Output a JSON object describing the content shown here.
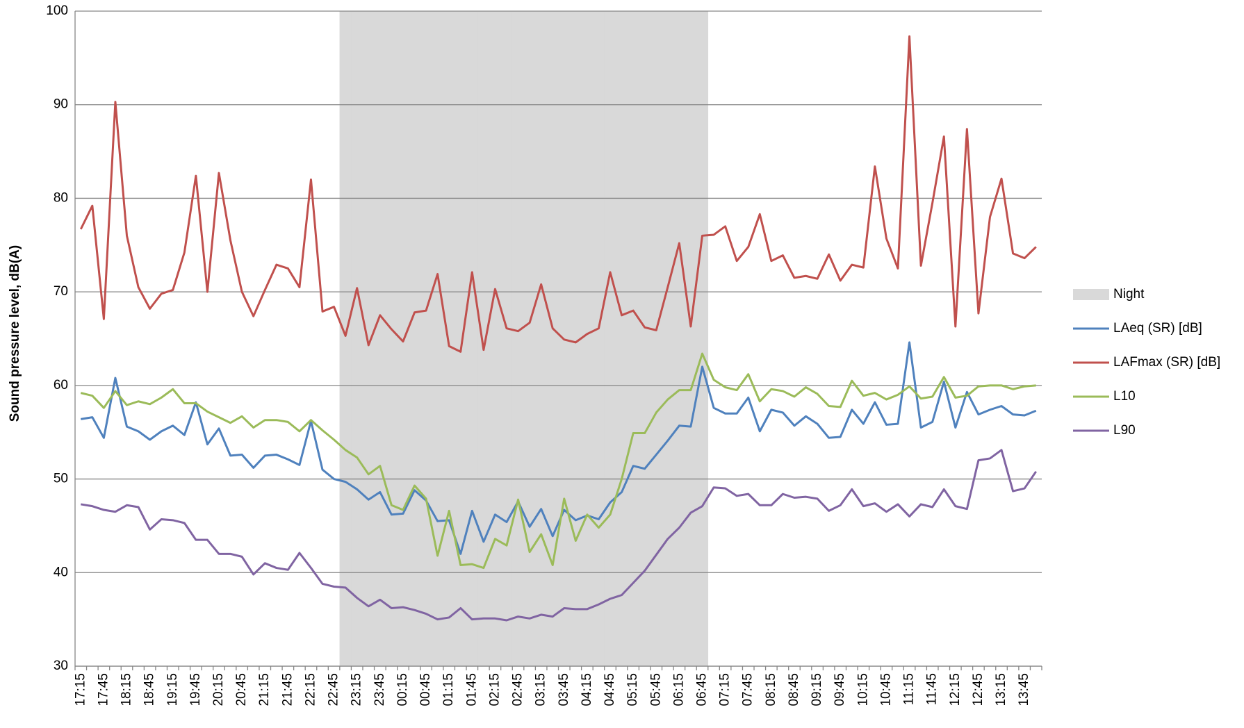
{
  "chart_data": {
    "type": "line",
    "y_label": "Sound pressure level, dB(A)",
    "ylim": [
      30,
      100
    ],
    "yticks": [
      30,
      40,
      50,
      60,
      70,
      80,
      90,
      100
    ],
    "grid": true,
    "legend": "right",
    "categories": [
      "17:15",
      null,
      "17:45",
      null,
      "18:15",
      null,
      "18:45",
      null,
      "19:15",
      null,
      "19:45",
      null,
      "20:15",
      null,
      "20:45",
      null,
      "21:15",
      null,
      "21:45",
      null,
      "22:15",
      null,
      "22:45",
      null,
      "23:15",
      null,
      "23:45",
      null,
      "00:15",
      null,
      "00:45",
      null,
      "01:15",
      null,
      "01:45",
      null,
      "02:15",
      null,
      "02:45",
      null,
      "03:15",
      null,
      "03:45",
      null,
      "04:15",
      null,
      "04:45",
      null,
      "05:15",
      null,
      "05:45",
      null,
      "06:15",
      null,
      "06:45",
      null,
      "07:15",
      null,
      "07:45",
      null,
      "08:15",
      null,
      "08:45",
      null,
      "09:15",
      null,
      "09:45",
      null,
      "10:15",
      null,
      "10:45",
      null,
      "11:15",
      null,
      "11:45",
      null,
      "12:15",
      null,
      "12:45",
      null,
      "13:15",
      null,
      "13:45",
      null
    ],
    "series": [
      {
        "name": "Night",
        "type": "bar",
        "color": "#d9d9d9",
        "values": [
          null,
          null,
          null,
          null,
          null,
          null,
          null,
          null,
          null,
          null,
          null,
          null,
          null,
          null,
          null,
          null,
          null,
          null,
          null,
          null,
          null,
          null,
          null,
          100,
          100,
          100,
          100,
          100,
          100,
          100,
          100,
          100,
          100,
          100,
          100,
          100,
          100,
          100,
          100,
          100,
          100,
          100,
          100,
          100,
          100,
          100,
          100,
          100,
          100,
          100,
          100,
          100,
          100,
          100,
          100,
          null,
          null,
          null,
          null,
          null,
          null,
          null,
          null,
          null,
          null,
          null,
          null,
          null,
          null,
          null,
          null,
          null,
          null,
          null,
          null,
          null,
          null,
          null,
          null,
          null,
          null,
          null,
          null,
          null
        ]
      },
      {
        "name": "LAeq (SR) [dB]",
        "type": "line",
        "color": "#4f81bd",
        "values": [
          56.4,
          56.6,
          54.4,
          60.8,
          55.6,
          55.1,
          54.2,
          55.1,
          55.7,
          54.7,
          58.2,
          53.7,
          55.4,
          52.5,
          52.6,
          51.2,
          52.5,
          52.6,
          52.1,
          51.5,
          56.2,
          51,
          50,
          49.7,
          48.9,
          47.8,
          48.6,
          46.2,
          46.3,
          48.8,
          47.7,
          45.5,
          45.6,
          42,
          46.6,
          43.3,
          46.2,
          45.4,
          47.6,
          44.9,
          46.8,
          43.9,
          46.7,
          45.6,
          46.1,
          45.7,
          47.5,
          48.6,
          51.4,
          51.1,
          52.6,
          54.1,
          55.7,
          55.6,
          62,
          57.6,
          57,
          57,
          58.7,
          55.1,
          57.4,
          57.1,
          55.7,
          56.7,
          55.9,
          54.4,
          54.5,
          57.4,
          55.9,
          58.2,
          55.8,
          55.9,
          64.6,
          55.5,
          56.1,
          60.4,
          55.5,
          59.3,
          56.9,
          57.4,
          57.8,
          56.9,
          56.8,
          57.3
        ]
      },
      {
        "name": "LAFmax (SR) [dB]",
        "type": "line",
        "color": "#c0504d",
        "values": [
          76.7,
          79.2,
          67.1,
          90.3,
          76,
          70.5,
          68.2,
          69.8,
          70.2,
          74.2,
          82.4,
          70,
          82.7,
          75.5,
          70,
          67.4,
          70.2,
          72.9,
          72.5,
          70.5,
          82,
          67.9,
          68.4,
          65.3,
          70.4,
          64.3,
          67.5,
          66,
          64.7,
          67.8,
          68,
          71.9,
          64.2,
          63.6,
          72.1,
          63.8,
          70.3,
          66.1,
          65.8,
          66.7,
          70.8,
          66.1,
          64.9,
          64.6,
          65.5,
          66.1,
          72.1,
          67.5,
          68,
          66.2,
          65.9,
          70.5,
          75.2,
          66.3,
          76,
          76.1,
          77,
          73.3,
          74.8,
          78.3,
          73.3,
          73.9,
          71.5,
          71.7,
          71.4,
          74,
          71.2,
          72.9,
          72.6,
          83.4,
          75.7,
          72.5,
          97.3,
          72.8,
          79.5,
          86.6,
          66.3,
          87.4,
          67.7,
          78,
          82.1,
          74.1,
          73.6,
          74.8
        ]
      },
      {
        "name": "L10",
        "type": "line",
        "color": "#9bbb59",
        "values": [
          59.2,
          58.9,
          57.6,
          59.4,
          57.9,
          58.3,
          58,
          58.7,
          59.6,
          58.1,
          58.1,
          57.2,
          56.6,
          56,
          56.7,
          55.5,
          56.3,
          56.3,
          56.1,
          55.1,
          56.3,
          55.2,
          54.2,
          53.1,
          52.3,
          50.5,
          51.4,
          47.2,
          46.7,
          49.3,
          47.9,
          41.8,
          46.6,
          40.8,
          40.9,
          40.5,
          43.6,
          42.9,
          47.8,
          42.2,
          44.1,
          40.8,
          47.9,
          43.4,
          46.2,
          44.8,
          46.2,
          50,
          54.9,
          54.9,
          57.1,
          58.5,
          59.5,
          59.5,
          63.4,
          60.6,
          59.8,
          59.5,
          61.2,
          58.3,
          59.6,
          59.4,
          58.8,
          59.8,
          59.1,
          57.8,
          57.7,
          60.5,
          58.9,
          59.2,
          58.5,
          59,
          59.9,
          58.6,
          58.8,
          60.9,
          58.7,
          58.9,
          59.9,
          60,
          60,
          59.6,
          59.9,
          60
        ]
      },
      {
        "name": "L90",
        "type": "line",
        "color": "#8064a2",
        "values": [
          47.3,
          47.1,
          46.7,
          46.5,
          47.2,
          47,
          44.6,
          45.7,
          45.6,
          45.3,
          43.5,
          43.5,
          42,
          42,
          41.7,
          39.8,
          41,
          40.5,
          40.3,
          42.1,
          40.5,
          38.8,
          38.5,
          38.4,
          37.3,
          36.4,
          37.1,
          36.2,
          36.3,
          36,
          35.6,
          35,
          35.2,
          36.2,
          35,
          35.1,
          35.1,
          34.9,
          35.3,
          35.1,
          35.5,
          35.3,
          36.2,
          36.1,
          36.1,
          36.6,
          37.2,
          37.6,
          38.9,
          40.2,
          41.9,
          43.6,
          44.8,
          46.4,
          47.1,
          49.1,
          49,
          48.2,
          48.4,
          47.2,
          47.2,
          48.4,
          48,
          48.1,
          47.9,
          46.6,
          47.2,
          48.9,
          47.1,
          47.4,
          46.5,
          47.3,
          46,
          47.3,
          47,
          48.9,
          47.1,
          46.8,
          52,
          52.2,
          53.1,
          48.7,
          49,
          50.8
        ]
      }
    ]
  }
}
